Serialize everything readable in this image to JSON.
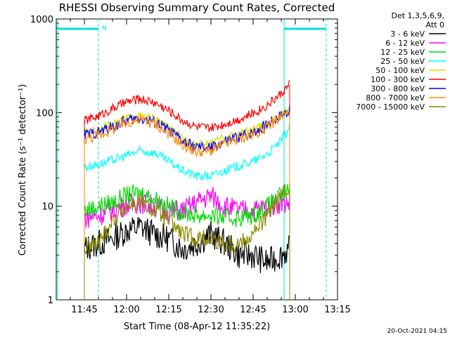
{
  "chart_data": {
    "type": "line",
    "title": "RHESSI Observing Summary Count Rates, Corrected",
    "xlabel": "Start Time (08-Apr-12 11:35:22)",
    "ylabel": "Corrected Count Rate (s⁻¹ detector⁻¹)",
    "yscale": "log",
    "ylim": [
      1,
      1000
    ],
    "y_ticks": [
      "1",
      "10",
      "100",
      "1000"
    ],
    "xlim": [
      "11:35",
      "13:15"
    ],
    "x_ticks": [
      "11:45",
      "12:00",
      "12:15",
      "12:30",
      "12:45",
      "13:00",
      "13:15"
    ],
    "legend_header": [
      "Det 1,3,5,6,9,",
      "Att 0"
    ],
    "legend_position": "right",
    "timestamp": "20-Oct-2021 04:15",
    "attenuator_marker": "N",
    "series": [
      {
        "name": "3 - 6 keV",
        "color": "#000000",
        "x": [
          "11:45",
          "11:50",
          "11:55",
          "12:00",
          "12:05",
          "12:10",
          "12:15",
          "12:20",
          "12:25",
          "12:30",
          "12:35",
          "12:40",
          "12:45",
          "12:50",
          "12:55",
          "12:58"
        ],
        "y": [
          3.5,
          4,
          4.5,
          5.5,
          6,
          5,
          4.5,
          3.5,
          4,
          5,
          4,
          3,
          3,
          2.5,
          3,
          3.5
        ]
      },
      {
        "name": "6 - 12 keV",
        "color": "#ff00ff",
        "x": [
          "11:45",
          "11:50",
          "11:55",
          "12:00",
          "12:05",
          "12:10",
          "12:15",
          "12:20",
          "12:25",
          "12:30",
          "12:35",
          "12:40",
          "12:45",
          "12:50",
          "12:55",
          "12:58"
        ],
        "y": [
          7.5,
          8,
          9,
          10.5,
          11,
          10,
          9,
          9,
          11,
          13,
          10,
          9,
          9,
          10,
          11,
          11
        ]
      },
      {
        "name": "12 - 25 keV",
        "color": "#00dd00",
        "x": [
          "11:45",
          "11:50",
          "11:55",
          "12:00",
          "12:05",
          "12:10",
          "12:15",
          "12:20",
          "12:25",
          "12:30",
          "12:35",
          "12:40",
          "12:45",
          "12:50",
          "12:55",
          "12:58"
        ],
        "y": [
          9,
          10,
          11,
          13,
          14,
          12,
          10,
          8.5,
          8,
          8,
          7.5,
          7.5,
          8,
          10,
          13,
          15
        ]
      },
      {
        "name": "25 - 50 keV",
        "color": "#00ffff",
        "x": [
          "11:45",
          "11:50",
          "11:55",
          "12:00",
          "12:05",
          "12:10",
          "12:15",
          "12:20",
          "12:25",
          "12:30",
          "12:35",
          "12:40",
          "12:45",
          "12:50",
          "12:55",
          "12:58"
        ],
        "y": [
          26,
          28,
          31,
          35,
          39,
          37,
          30,
          24,
          21,
          21,
          24,
          27,
          30,
          36,
          50,
          70
        ]
      },
      {
        "name": "50 - 100 keV",
        "color": "#dddd00",
        "x": [
          "11:45",
          "11:50",
          "11:55",
          "12:00",
          "12:05",
          "12:10",
          "12:15",
          "12:20",
          "12:25",
          "12:30",
          "12:35",
          "12:40",
          "12:45",
          "12:50",
          "12:55",
          "12:58"
        ],
        "y": [
          62,
          67,
          76,
          88,
          93,
          86,
          70,
          53,
          46,
          47,
          55,
          60,
          66,
          76,
          95,
          108
        ]
      },
      {
        "name": "100 - 300 keV",
        "color": "#ff0000",
        "x": [
          "11:45",
          "11:50",
          "11:55",
          "12:00",
          "12:05",
          "12:10",
          "12:15",
          "12:20",
          "12:25",
          "12:30",
          "12:35",
          "12:40",
          "12:45",
          "12:50",
          "12:55",
          "12:58"
        ],
        "y": [
          82,
          92,
          110,
          130,
          140,
          128,
          105,
          82,
          70,
          68,
          76,
          85,
          98,
          120,
          160,
          200
        ]
      },
      {
        "name": "300 - 800 keV",
        "color": "#0000ff",
        "x": [
          "11:45",
          "11:50",
          "11:55",
          "12:00",
          "12:05",
          "12:10",
          "12:15",
          "12:20",
          "12:25",
          "12:30",
          "12:35",
          "12:40",
          "12:45",
          "12:50",
          "12:55",
          "12:58"
        ],
        "y": [
          58,
          62,
          70,
          82,
          87,
          80,
          65,
          49,
          42,
          42,
          49,
          55,
          62,
          75,
          95,
          105
        ]
      },
      {
        "name": "800 - 7000 keV",
        "color": "#ff8800",
        "x": [
          "11:45",
          "11:50",
          "11:55",
          "12:00",
          "12:05",
          "12:10",
          "12:15",
          "12:20",
          "12:25",
          "12:30",
          "12:35",
          "12:40",
          "12:45",
          "12:50",
          "12:55",
          "12:58"
        ],
        "y": [
          52,
          57,
          66,
          78,
          84,
          76,
          60,
          45,
          38,
          39,
          46,
          52,
          58,
          70,
          90,
          102
        ]
      },
      {
        "name": "7000 - 15000 keV",
        "color": "#888800",
        "x": [
          "11:45",
          "11:50",
          "11:55",
          "12:00",
          "12:05",
          "12:10",
          "12:15",
          "12:20",
          "12:25",
          "12:30",
          "12:35",
          "12:40",
          "12:45",
          "12:50",
          "12:55",
          "12:58"
        ],
        "y": [
          3.5,
          4,
          7,
          10,
          11,
          9,
          7,
          5,
          4.5,
          4.5,
          4,
          4,
          5,
          8,
          13,
          15
        ]
      }
    ]
  }
}
